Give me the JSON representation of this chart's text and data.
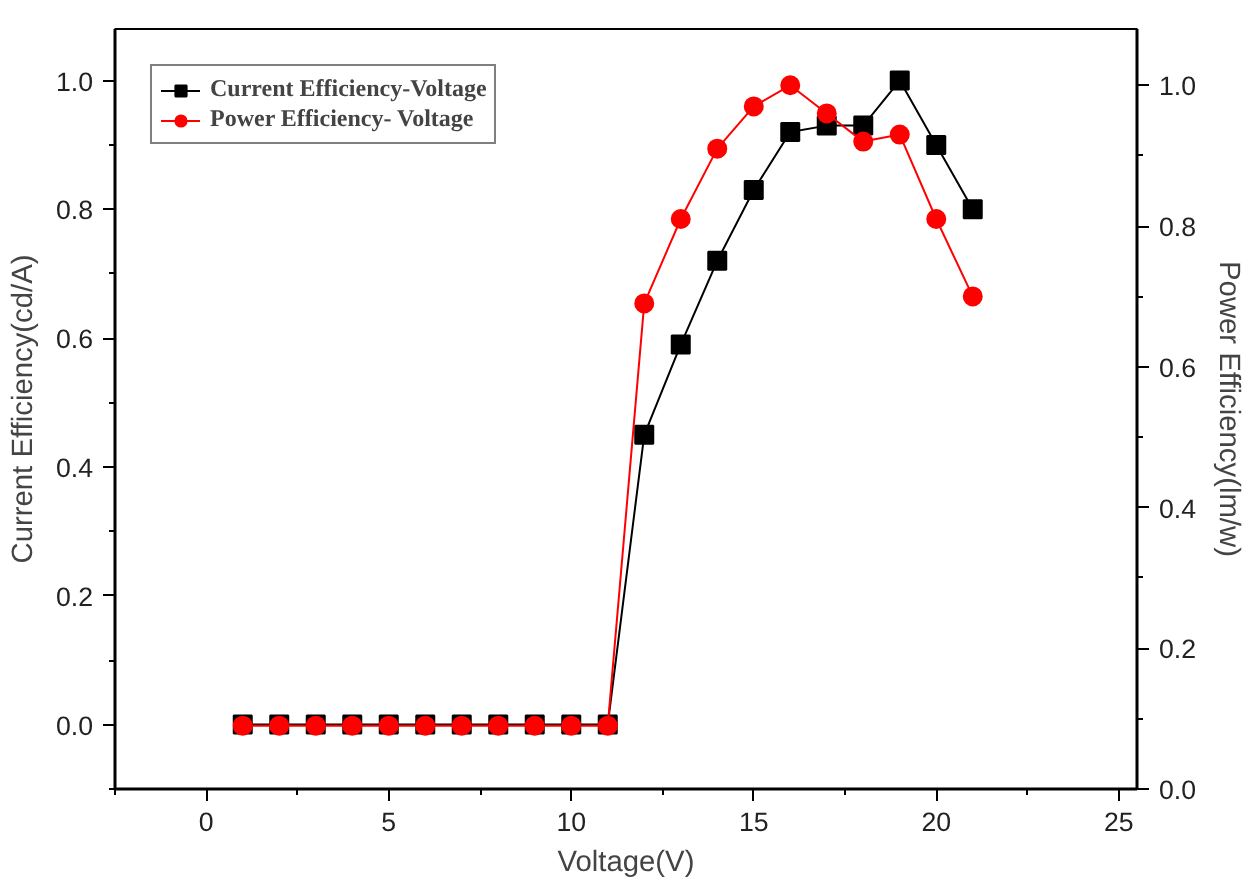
{
  "chart_data": {
    "type": "line",
    "xlabel": "Voltage(V)",
    "ylabel": "Current Efficiency(cd/A)",
    "y2label": "Power Efficiency(lm/w)",
    "x": [
      1,
      2,
      3,
      4,
      5,
      6,
      7,
      8,
      9,
      10,
      11,
      12,
      13,
      14,
      15,
      16,
      17,
      18,
      19,
      20,
      21
    ],
    "series": [
      {
        "name": "Current Efficiency-Voltage",
        "color": "#000000",
        "marker": "square",
        "values": [
          0,
          0,
          0,
          0,
          0,
          0,
          0,
          0,
          0,
          0,
          0,
          0.45,
          0.59,
          0.72,
          0.83,
          0.92,
          0.93,
          0.93,
          1.0,
          0.9,
          0.8
        ]
      },
      {
        "name": "Power Efficiency- Voltage",
        "color": "#ff0000",
        "marker": "circle",
        "axis": "y2",
        "values": [
          0.09,
          0.09,
          0.09,
          0.09,
          0.09,
          0.09,
          0.09,
          0.09,
          0.09,
          0.09,
          0.09,
          0.69,
          0.81,
          0.91,
          0.97,
          1.0,
          0.96,
          0.92,
          0.93,
          0.81,
          0.7
        ]
      }
    ],
    "xlim": [
      -2.5,
      25.5
    ],
    "xticks": [
      0,
      5,
      10,
      15,
      20,
      25
    ],
    "ylim": [
      -0.1,
      1.08
    ],
    "yticks": [
      {
        "value": 0,
        "label": "0.0"
      },
      0.2,
      0.4,
      0.6,
      0.8,
      {
        "value": 1,
        "label": "1.0"
      }
    ],
    "y2lim": [
      0,
      1.08
    ],
    "y2ticks": [
      {
        "value": 0,
        "label": "0.0"
      },
      0.2,
      0.4,
      0.6,
      0.8,
      {
        "value": 1,
        "label": "1.0"
      }
    ],
    "grid": false,
    "legend": "top left",
    "line_style": "solid"
  }
}
